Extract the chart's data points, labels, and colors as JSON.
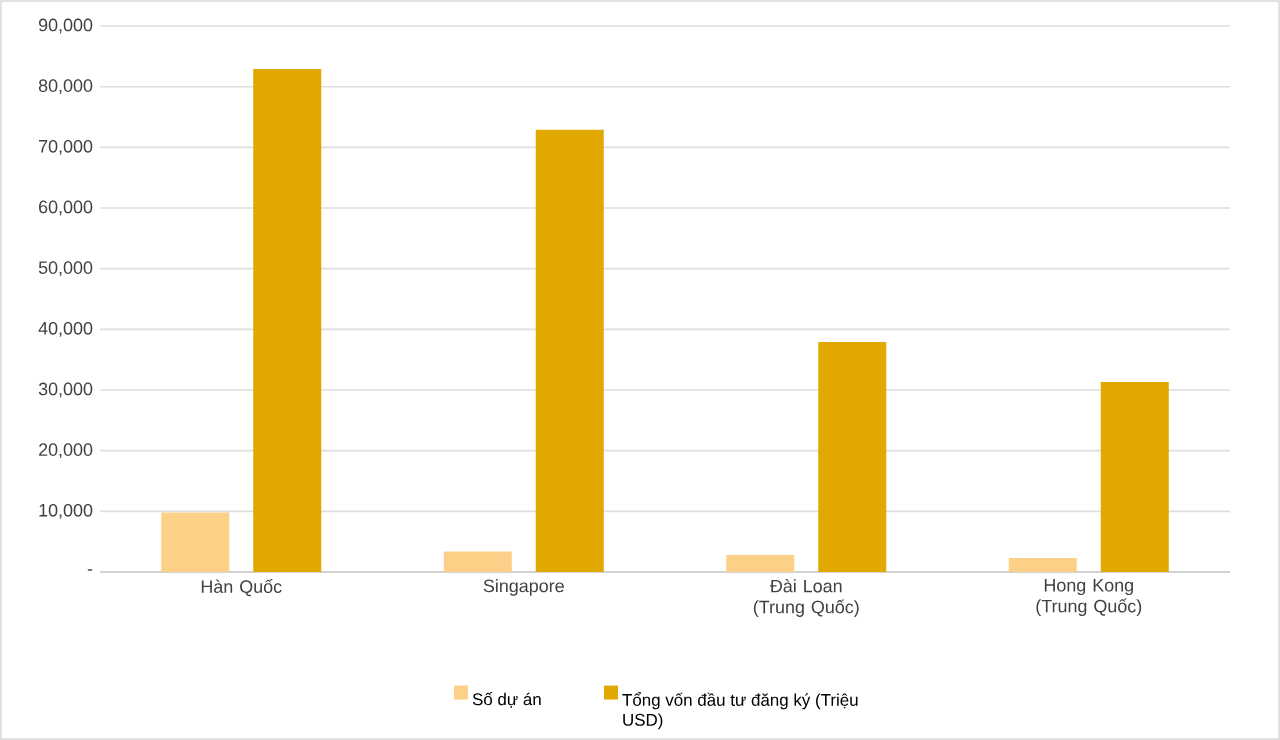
{
  "chart_data": {
    "type": "bar",
    "categories": [
      "Hàn Quốc",
      "Singapore",
      "Đài Loan (Trung Quốc)",
      "Hong Kong (Trung Quốc)"
    ],
    "series": [
      {
        "name": "Số dự án",
        "color": "#fdd088",
        "values": [
          9800,
          3400,
          2800,
          2300
        ]
      },
      {
        "name": "Tổng vốn đầu tư đăng ký (Triệu USD)",
        "color": "#e0a800",
        "values": [
          82900,
          72900,
          37900,
          31300
        ]
      }
    ],
    "ylim": [
      0,
      90000
    ],
    "yticks": [
      {
        "value": 0,
        "label": "-"
      },
      {
        "value": 10000,
        "label": "10,000"
      },
      {
        "value": 20000,
        "label": "20,000"
      },
      {
        "value": 30000,
        "label": "30,000"
      },
      {
        "value": 40000,
        "label": "40,000"
      },
      {
        "value": 50000,
        "label": "50,000"
      },
      {
        "value": 60000,
        "label": "60,000"
      },
      {
        "value": 70000,
        "label": "70,000"
      },
      {
        "value": 80000,
        "label": "80,000"
      },
      {
        "value": 90000,
        "label": "90,000"
      }
    ],
    "grid": "y",
    "legend": "bottom"
  }
}
